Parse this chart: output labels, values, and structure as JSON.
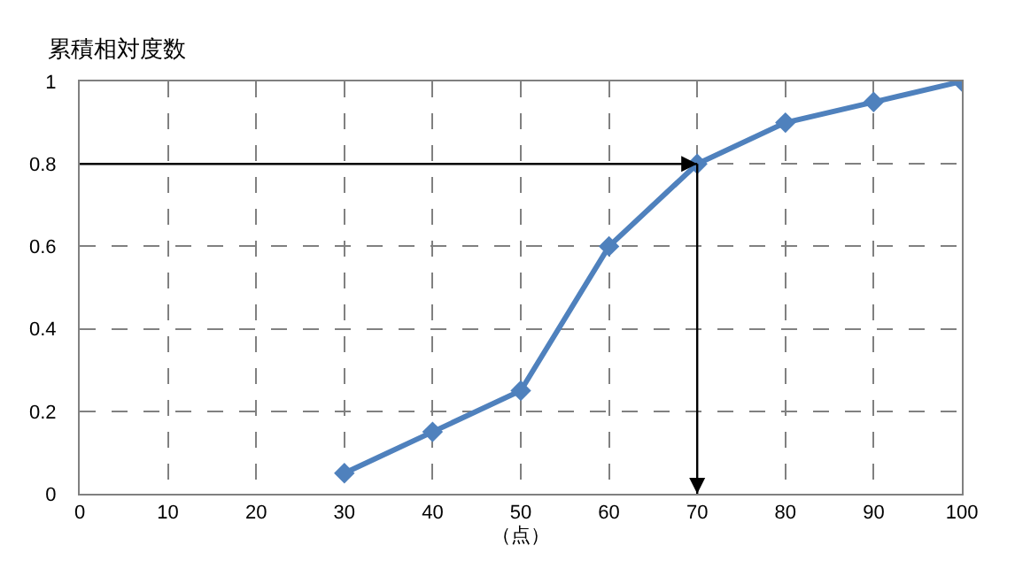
{
  "chart_data": {
    "type": "line",
    "title": "累積相対度数",
    "xlabel": "（点）",
    "x": [
      30,
      40,
      50,
      60,
      70,
      80,
      90,
      100
    ],
    "series": [
      {
        "color": "#4f81bd",
        "values": [
          0.05,
          0.15,
          0.25,
          0.6,
          0.8,
          0.9,
          0.95,
          1
        ]
      }
    ],
    "xlim": [
      0,
      100
    ],
    "xticks": [
      0,
      10,
      20,
      30,
      40,
      50,
      60,
      70,
      80,
      90,
      100
    ],
    "ylim": [
      0,
      1
    ],
    "yticks": [
      0,
      0.2,
      0.4,
      0.6,
      0.8,
      1
    ],
    "grid": true,
    "marker": "diamond",
    "line_style": "solid",
    "ref_lines": [
      {
        "axis": "y",
        "value": 0.8,
        "color": "#000000"
      },
      {
        "axis": "x",
        "value": 70,
        "color": "#000000"
      }
    ]
  }
}
